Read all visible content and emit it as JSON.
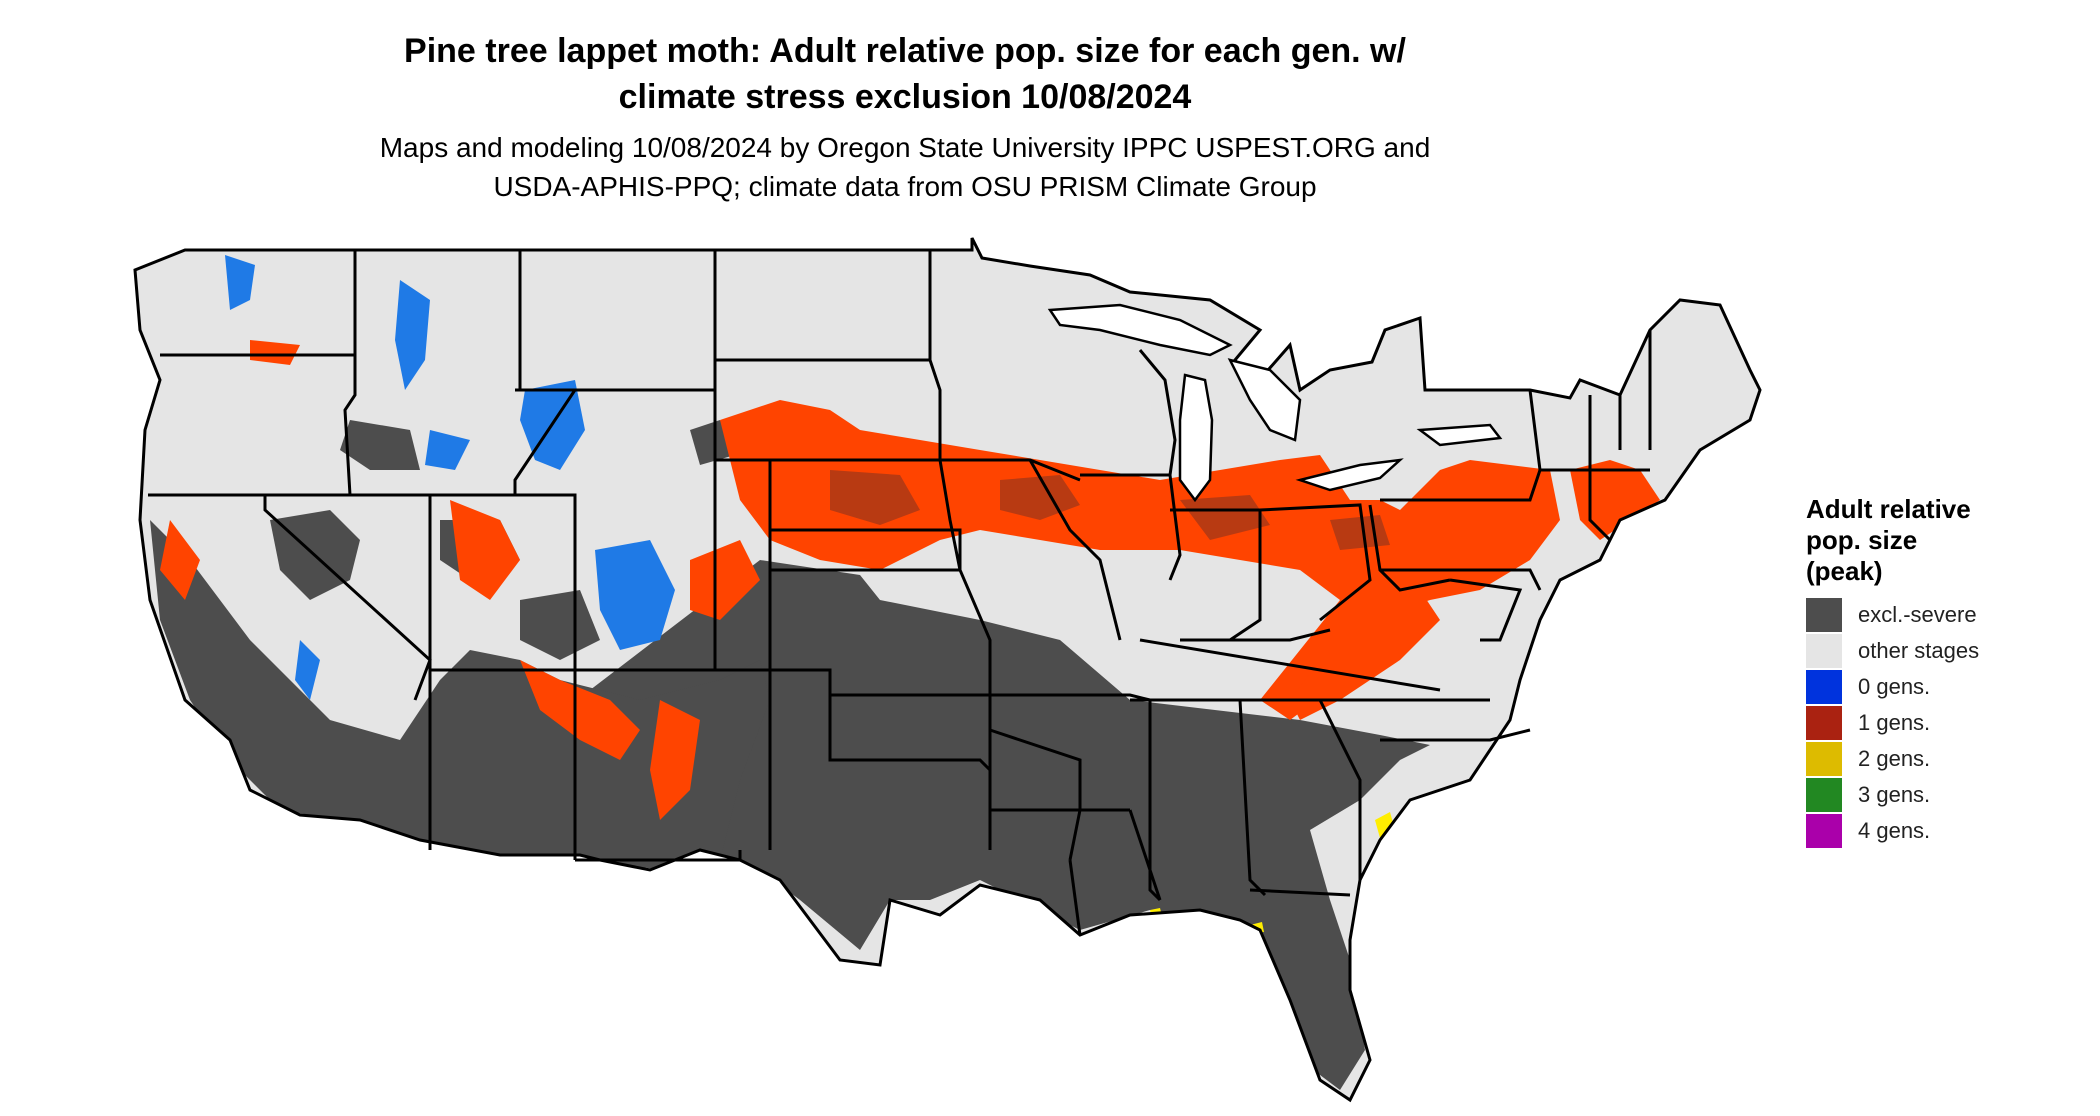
{
  "title": {
    "line1": "Pine tree lappet moth: Adult relative pop. size for each gen. w/",
    "line2": "climate stress exclusion 10/08/2024"
  },
  "subtitle": {
    "line1": "Maps and modeling 10/08/2024 by Oregon State University IPPC USPEST.ORG and",
    "line2": "USDA-APHIS-PPQ; climate data from OSU PRISM Climate Group"
  },
  "legend": {
    "title_line1": "Adult relative",
    "title_line2": "pop. size",
    "title_line3": "(peak)",
    "items": [
      {
        "label": "excl.-severe",
        "color": "#4d4d4d"
      },
      {
        "label": "other stages",
        "color": "#e5e5e5"
      },
      {
        "label": "0 gens.",
        "color": "#0033dd"
      },
      {
        "label": "1 gens.",
        "color": "#aa2211"
      },
      {
        "label": "2 gens.",
        "color": "#ddbb00"
      },
      {
        "label": "3 gens.",
        "color": "#228822"
      },
      {
        "label": "4 gens.",
        "color": "#aa00aa"
      }
    ]
  },
  "map_colors": {
    "excluded": "#4d4d4d",
    "other": "#e5e5e5",
    "one_gen_bright": "#ff4400",
    "one_gen_dark": "#b83a12",
    "zero_gen": "#1f7ae6",
    "two_gen": "#ffee00",
    "borders": "#000000"
  }
}
